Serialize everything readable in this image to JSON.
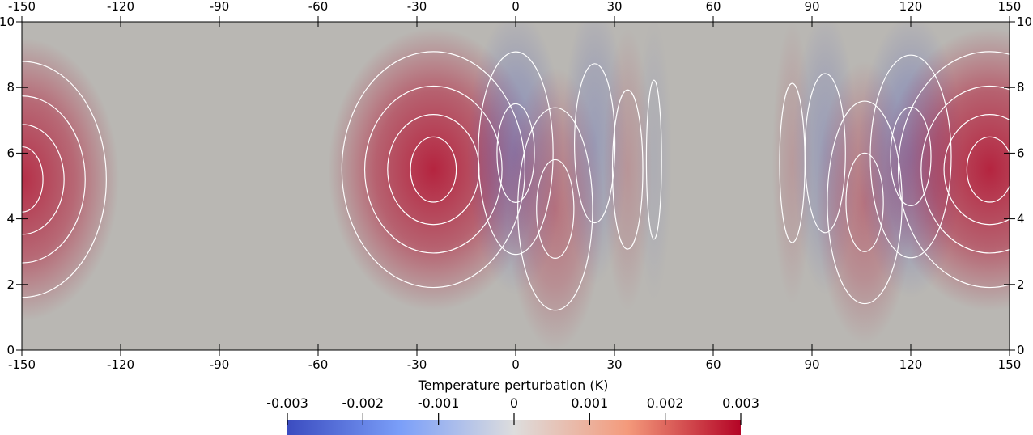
{
  "chart_data": {
    "type": "heatmap",
    "title": "",
    "x_ticks": [
      -150,
      -120,
      -90,
      -60,
      -30,
      0,
      30,
      60,
      90,
      120,
      150
    ],
    "x_tick_labels": [
      "-150",
      "-120",
      "-90",
      "-60",
      "-30",
      "0",
      "30",
      "60",
      "90",
      "120",
      "150"
    ],
    "y_ticks": [
      0,
      2,
      4,
      6,
      8,
      10
    ],
    "y_tick_labels": [
      "0",
      "2",
      "4",
      "6",
      "8",
      "10"
    ],
    "xlim": [
      -150,
      150
    ],
    "ylim": [
      0,
      10
    ],
    "colorbar": {
      "title": "Temperature perturbation (K)",
      "range": [
        -0.003,
        0.003
      ],
      "ticks": [
        -0.003,
        -0.002,
        -0.001,
        0,
        0.001,
        0.002,
        0.003
      ],
      "tick_labels": [
        "-0.003",
        "-0.002",
        "-0.001",
        "0",
        "0.001",
        "0.002",
        "0.003"
      ],
      "colormap": "cool-to-warm",
      "colors": {
        "low": "#3b4cc0",
        "mid": "#dddddd",
        "high": "#b40426"
      }
    },
    "anomalies": [
      {
        "x": -150,
        "y": 5.2,
        "amplitude": 0.0024
      },
      {
        "x": -25,
        "y": 5.5,
        "amplitude": 0.0026
      },
      {
        "x": 0,
        "y": 6,
        "amplitude": -0.0012
      },
      {
        "x": 12,
        "y": 4.3,
        "amplitude": 0.0012
      },
      {
        "x": 24,
        "y": 6.3,
        "amplitude": -0.0008
      },
      {
        "x": 34,
        "y": 5.5,
        "amplitude": 0.0006
      },
      {
        "x": 42,
        "y": 5.8,
        "amplitude": -0.0003
      },
      {
        "x": 84,
        "y": 5.7,
        "amplitude": 0.0005
      },
      {
        "x": 94,
        "y": 6,
        "amplitude": -0.0008
      },
      {
        "x": 106,
        "y": 4.5,
        "amplitude": 0.0012
      },
      {
        "x": 120,
        "y": 5.9,
        "amplitude": -0.0013
      },
      {
        "x": 144,
        "y": 5.5,
        "amplitude": 0.0026
      }
    ],
    "contour_color": "#ffffff",
    "background_value_color": "#b9b7b3"
  }
}
